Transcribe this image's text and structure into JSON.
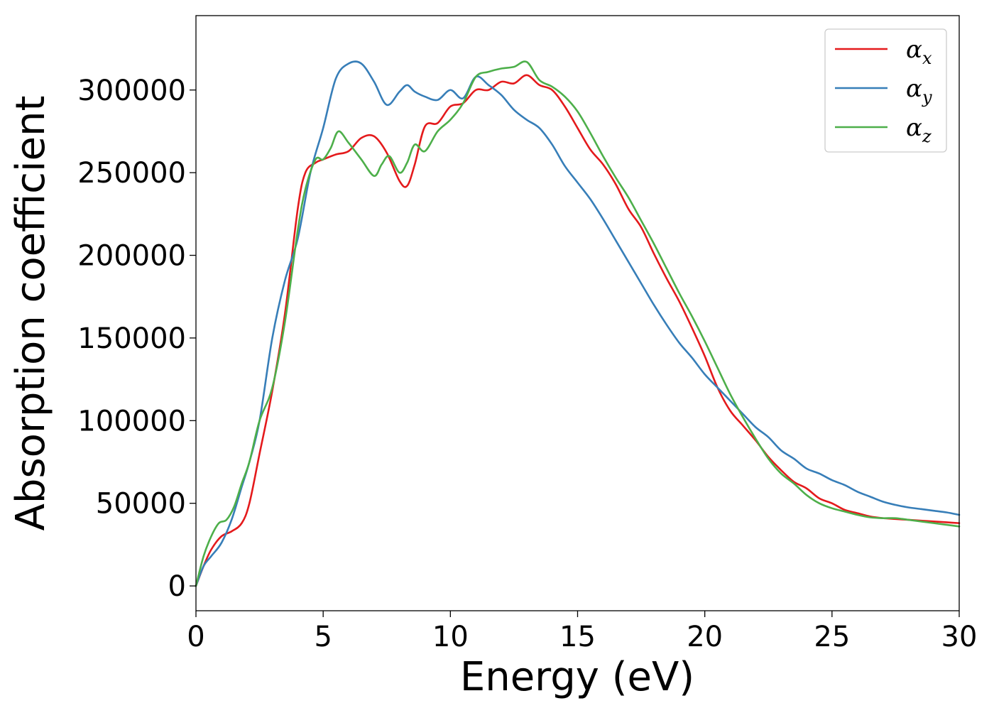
{
  "chart_data": {
    "type": "line",
    "xlabel": "Energy (eV)",
    "ylabel": "Absorption coefficient",
    "xlim": [
      0,
      30
    ],
    "ylim": [
      -15000,
      345000
    ],
    "xticks": [
      0,
      5,
      10,
      15,
      20,
      25,
      30
    ],
    "xtick_labels": [
      "0",
      "5",
      "10",
      "15",
      "20",
      "25",
      "30"
    ],
    "yticks": [
      0,
      50000,
      100000,
      150000,
      200000,
      250000,
      300000
    ],
    "ytick_labels": [
      "0",
      "50000",
      "100000",
      "150000",
      "200000",
      "250000",
      "300000"
    ],
    "grid": false,
    "legend": {
      "position": "top-right",
      "entries": [
        {
          "symbol": "α",
          "sub": "x"
        },
        {
          "symbol": "α",
          "sub": "y"
        },
        {
          "symbol": "α",
          "sub": "z"
        }
      ]
    },
    "series": [
      {
        "key": "alpha_x",
        "color": "#e41a1c",
        "x": [
          0,
          0.3,
          0.6,
          1.0,
          1.4,
          1.8,
          2.1,
          2.5,
          3.0,
          3.5,
          4.0,
          4.3,
          4.7,
          5.0,
          5.5,
          6.0,
          6.5,
          7.0,
          7.5,
          8.0,
          8.3,
          8.6,
          9.0,
          9.5,
          10.0,
          10.5,
          11.0,
          11.5,
          12.0,
          12.5,
          13.0,
          13.5,
          14.0,
          14.5,
          15.0,
          15.5,
          16.0,
          16.5,
          17.0,
          17.5,
          18.0,
          18.5,
          19.0,
          19.5,
          20.0,
          20.5,
          21.0,
          21.5,
          22.0,
          22.5,
          23.0,
          23.5,
          24.0,
          24.5,
          25.0,
          25.5,
          26.0,
          26.5,
          27.0,
          27.5,
          28.0,
          28.5,
          29.0,
          29.5,
          30.0
        ],
        "y": [
          0,
          12000,
          22000,
          30000,
          33000,
          38000,
          50000,
          80000,
          118000,
          165000,
          228000,
          250000,
          256000,
          258000,
          261000,
          263000,
          271000,
          272000,
          262000,
          245000,
          242000,
          255000,
          278000,
          280000,
          290000,
          292000,
          300000,
          300000,
          305000,
          304000,
          309000,
          303000,
          300000,
          290000,
          277000,
          264000,
          255000,
          243000,
          228000,
          217000,
          201000,
          186000,
          172000,
          156000,
          139000,
          120000,
          106000,
          97000,
          88000,
          78000,
          70000,
          63000,
          59000,
          53000,
          50000,
          46000,
          44000,
          42000,
          41000,
          40500,
          40000,
          39500,
          39000,
          38500,
          38000
        ]
      },
      {
        "key": "alpha_y",
        "color": "#377eb8",
        "x": [
          0,
          0.3,
          0.6,
          1.0,
          1.4,
          1.8,
          2.1,
          2.5,
          3.0,
          3.5,
          4.0,
          4.5,
          5.0,
          5.5,
          6.0,
          6.5,
          7.0,
          7.5,
          8.0,
          8.3,
          8.6,
          9.0,
          9.5,
          10.0,
          10.5,
          11.0,
          11.5,
          12.0,
          12.5,
          13.0,
          13.5,
          14.0,
          14.5,
          15.0,
          15.5,
          16.0,
          16.5,
          17.0,
          17.5,
          18.0,
          18.5,
          19.0,
          19.5,
          20.0,
          20.5,
          21.0,
          21.5,
          22.0,
          22.5,
          23.0,
          23.5,
          24.0,
          24.5,
          25.0,
          25.5,
          26.0,
          26.5,
          27.0,
          27.5,
          28.0,
          28.5,
          29.0,
          29.5,
          30.0
        ],
        "y": [
          0,
          12000,
          18000,
          26000,
          40000,
          60000,
          75000,
          100000,
          150000,
          185000,
          210000,
          250000,
          277000,
          307000,
          316000,
          316000,
          305000,
          291000,
          299000,
          303000,
          299000,
          296000,
          294000,
          300000,
          295000,
          308000,
          303000,
          297000,
          288000,
          282000,
          277000,
          267000,
          254000,
          244000,
          234000,
          222000,
          209000,
          196000,
          183000,
          170000,
          158000,
          147000,
          138000,
          128000,
          120000,
          112000,
          104000,
          96000,
          90000,
          82000,
          77000,
          71000,
          68000,
          64000,
          61000,
          57000,
          54000,
          51000,
          49000,
          47500,
          46500,
          45500,
          44500,
          43000
        ]
      },
      {
        "key": "alpha_z",
        "color": "#4daf4a",
        "x": [
          0,
          0.3,
          0.6,
          0.9,
          1.2,
          1.5,
          1.8,
          2.1,
          2.5,
          3.0,
          3.5,
          4.0,
          4.3,
          4.7,
          5.0,
          5.3,
          5.6,
          6.0,
          6.5,
          7.0,
          7.3,
          7.6,
          8.0,
          8.3,
          8.6,
          9.0,
          9.5,
          10.0,
          10.5,
          11.0,
          11.5,
          12.0,
          12.5,
          13.0,
          13.5,
          14.0,
          14.5,
          15.0,
          15.5,
          16.0,
          16.5,
          17.0,
          17.5,
          18.0,
          18.5,
          19.0,
          19.5,
          20.0,
          20.5,
          21.0,
          21.5,
          22.0,
          22.5,
          23.0,
          23.5,
          24.0,
          24.5,
          25.0,
          25.5,
          26.0,
          26.5,
          27.0,
          27.5,
          28.0,
          28.5,
          29.0,
          29.5,
          30.0
        ],
        "y": [
          0,
          18000,
          30000,
          38000,
          40000,
          48000,
          62000,
          75000,
          100000,
          120000,
          160000,
          215000,
          240000,
          258000,
          258000,
          265000,
          275000,
          268000,
          258000,
          248000,
          255000,
          260000,
          250000,
          256000,
          267000,
          263000,
          275000,
          282000,
          292000,
          308000,
          311000,
          313000,
          314000,
          317000,
          306000,
          302000,
          296000,
          287000,
          274000,
          260000,
          247000,
          235000,
          221000,
          207000,
          192000,
          177000,
          163000,
          148000,
          132000,
          116000,
          102000,
          89000,
          77000,
          68000,
          62000,
          55000,
          50000,
          47000,
          45000,
          43000,
          41500,
          41000,
          41000,
          40000,
          39000,
          38000,
          37000,
          36000
        ]
      }
    ]
  }
}
